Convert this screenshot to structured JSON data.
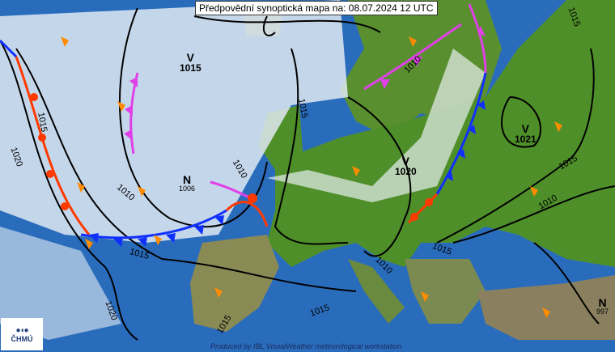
{
  "header": {
    "title": "Předpovědní synoptická mapa na: 08.07.2024 12 UTC"
  },
  "footer": {
    "credit": "Produced by IBL VisualWeather meteorological workstation"
  },
  "logo": {
    "text": "ČHMÚ"
  },
  "pressure_centers": [
    {
      "type": "V",
      "value": "1015"
    },
    {
      "type": "N",
      "value": "1006"
    },
    {
      "type": "V",
      "value": "1020"
    },
    {
      "type": "V",
      "value": "1021"
    },
    {
      "type": "N",
      "value": "997"
    }
  ],
  "isobar_labels": [
    "1015",
    "1020",
    "1010",
    "1015",
    "1020",
    "1010",
    "1015",
    "1010",
    "1015",
    "1010",
    "1015",
    "1015",
    "1015",
    "1010",
    "1015"
  ],
  "colors": {
    "sea": "#2a6cbc",
    "land": "#4f8f2a",
    "cloud": "#dfe9f2",
    "warm_front": "#ff3a00",
    "cold_front": "#1030ff",
    "occluded_front": "#e040e8",
    "border": "#ffff00",
    "wind_arrow": "#ff8c00"
  }
}
